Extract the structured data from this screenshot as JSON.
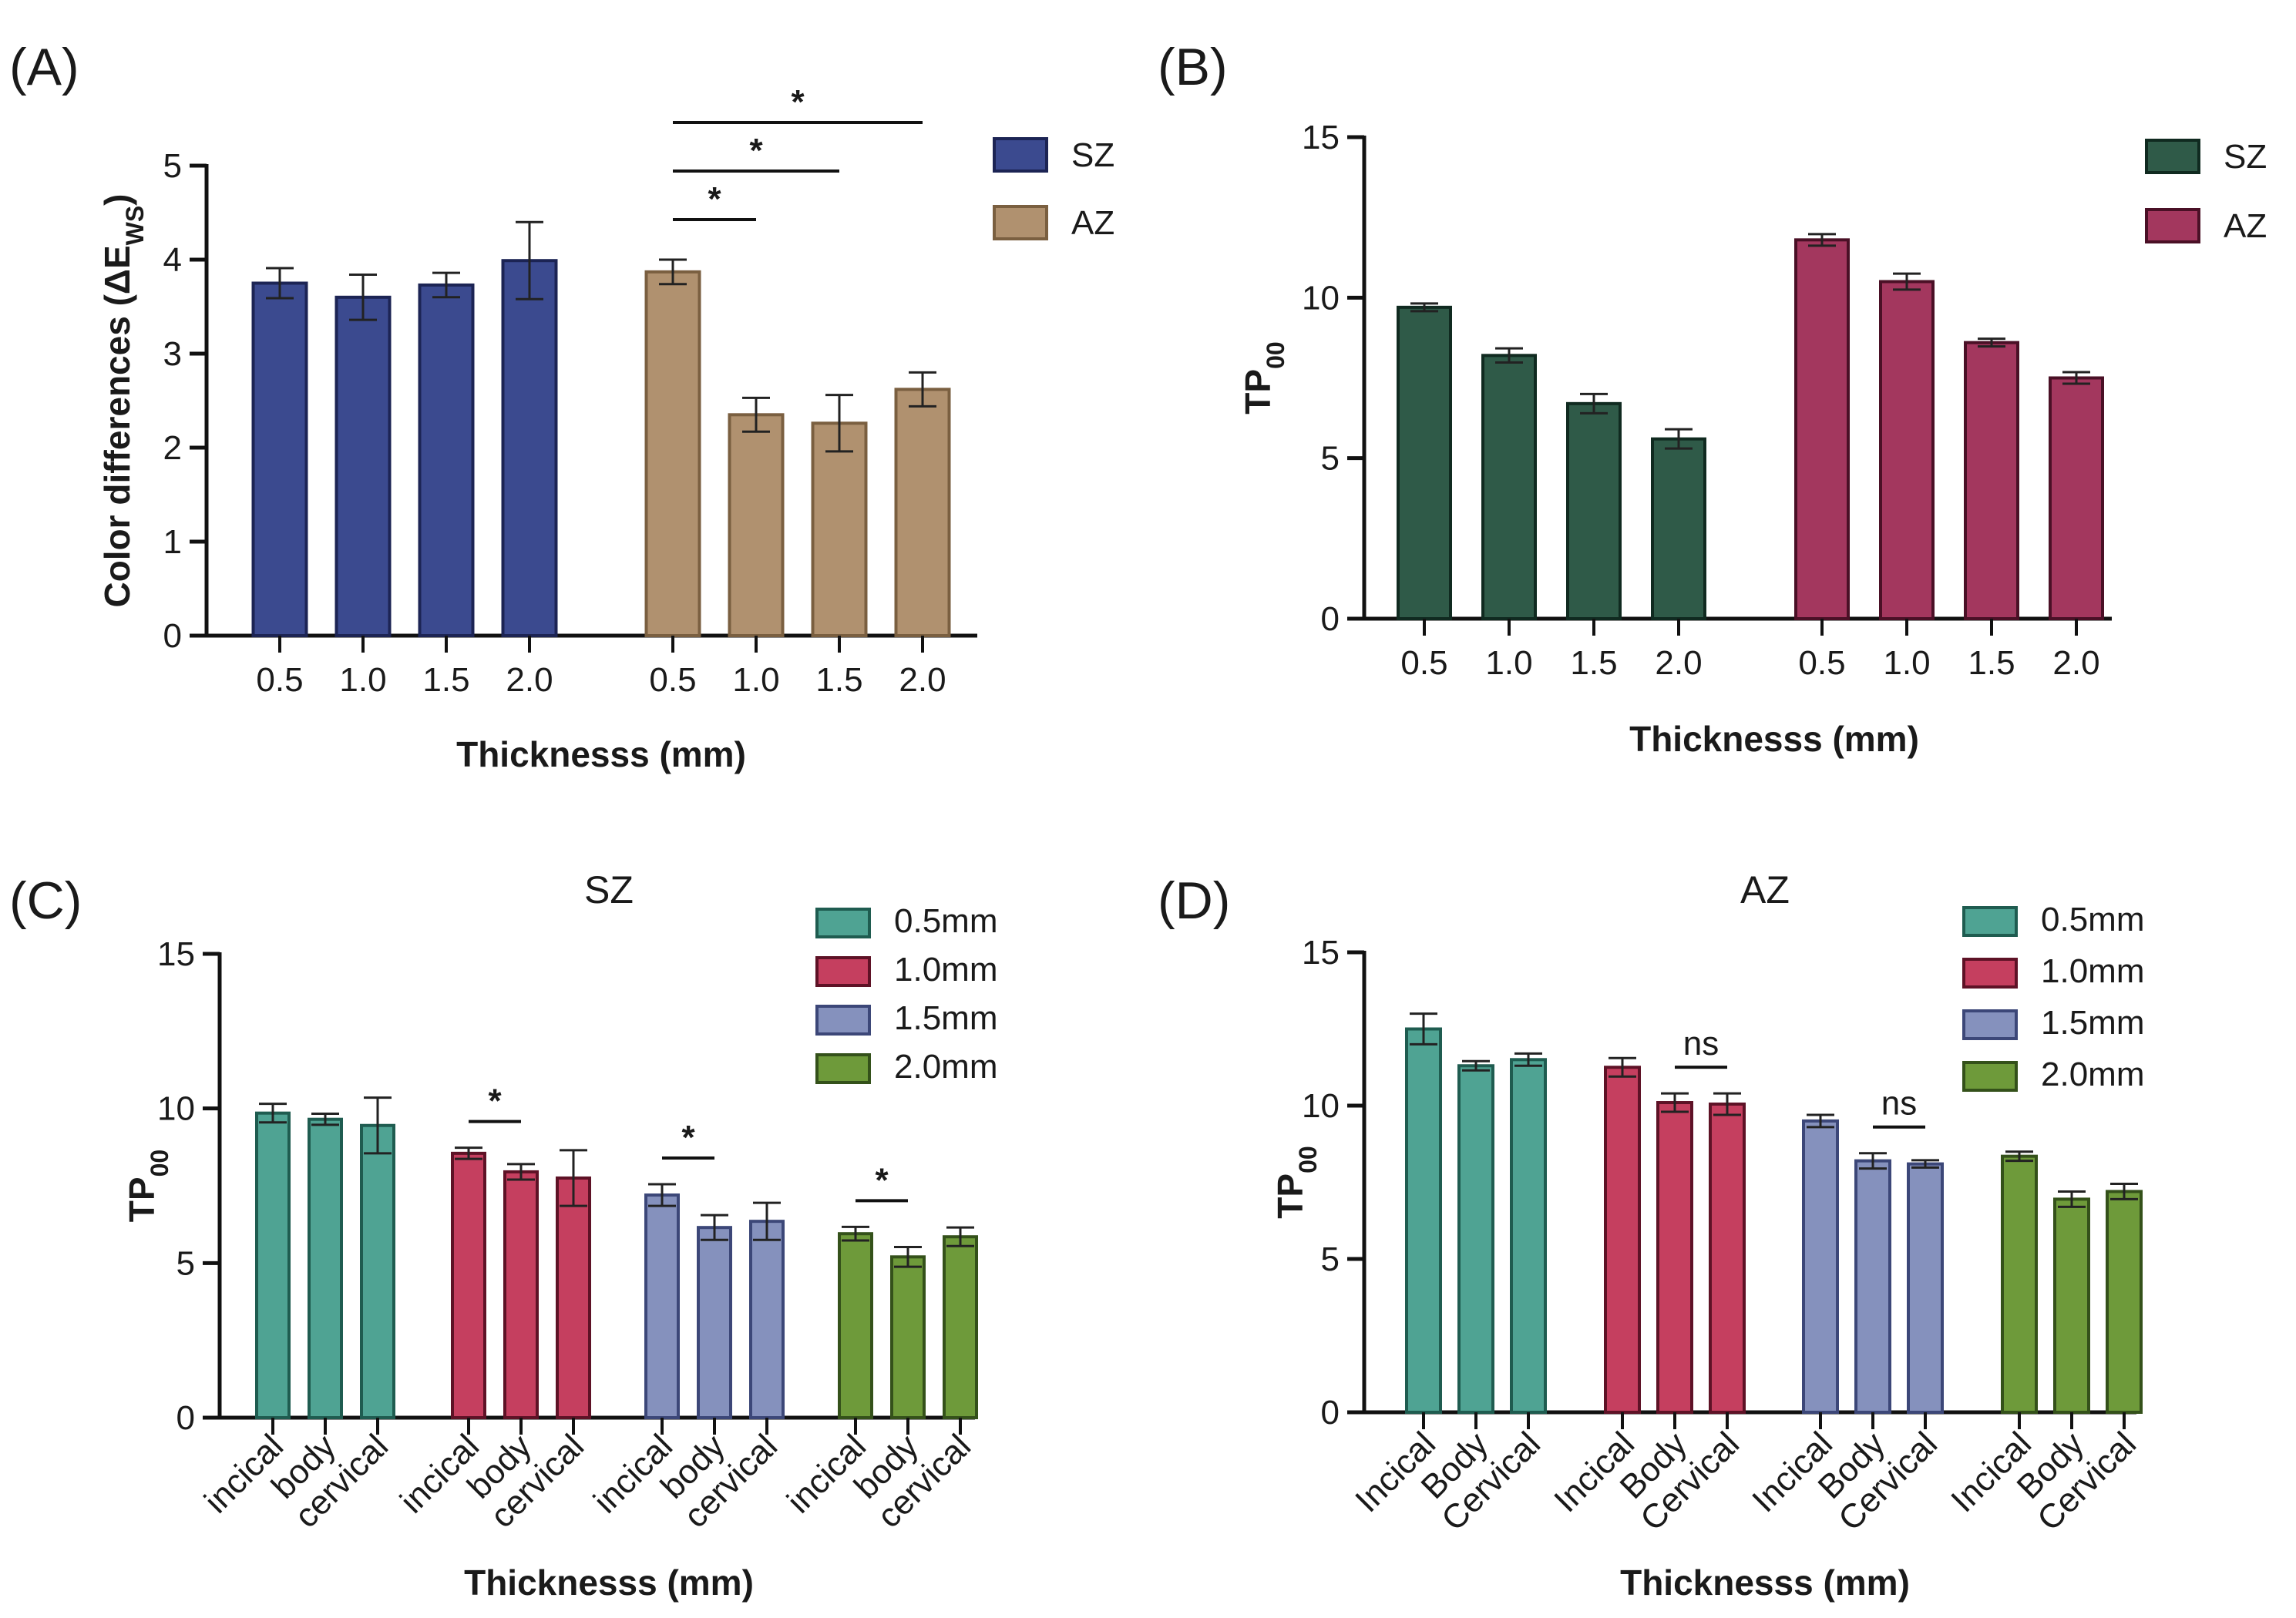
{
  "chart_data": [
    {
      "id": "A",
      "panel_label": "(A)",
      "type": "bar",
      "title": "",
      "xlabel": "Thicknesss (mm)",
      "ylabel_main": "Color differences (ΔE",
      "ylabel_sub": "WS",
      "ylabel_close": ")",
      "ylim": [
        0,
        5
      ],
      "yticks": [
        "0",
        "1",
        "2",
        "3",
        "4",
        "5"
      ],
      "legend": [
        {
          "name": "SZ",
          "fill": "#3b4a8f",
          "stroke": "#1c2454"
        },
        {
          "name": "AZ",
          "fill": "#b0916f",
          "stroke": "#7a5f40"
        }
      ],
      "groups": [
        {
          "series": "SZ",
          "categories": [
            "0.5",
            "1.0",
            "1.5",
            "2.0"
          ],
          "values": [
            3.75,
            3.6,
            3.73,
            3.99
          ],
          "errors": [
            0.16,
            0.24,
            0.13,
            0.41
          ]
        },
        {
          "series": "AZ",
          "categories": [
            "0.5",
            "1.0",
            "1.5",
            "2.0"
          ],
          "values": [
            3.87,
            2.35,
            2.26,
            2.62
          ],
          "errors": [
            0.13,
            0.18,
            0.3,
            0.18
          ]
        }
      ],
      "significance": [
        {
          "label": "*",
          "group": 1,
          "from": 0,
          "to": 1
        },
        {
          "label": "*",
          "group": 1,
          "from": 0,
          "to": 2
        },
        {
          "label": "*",
          "group": 1,
          "from": 0,
          "to": 3
        }
      ]
    },
    {
      "id": "B",
      "panel_label": "(B)",
      "type": "bar",
      "title": "",
      "xlabel": "Thicknesss (mm)",
      "ylabel_main": "TP",
      "ylabel_sub": "00",
      "ylabel_close": "",
      "ylim": [
        0,
        15
      ],
      "yticks": [
        "0",
        "5",
        "10",
        "15"
      ],
      "legend": [
        {
          "name": "SZ",
          "fill": "#2f5a48",
          "stroke": "#102a20"
        },
        {
          "name": "AZ",
          "fill": "#a3375e",
          "stroke": "#4a1026"
        }
      ],
      "groups": [
        {
          "series": "SZ",
          "categories": [
            "0.5",
            "1.0",
            "1.5",
            "2.0"
          ],
          "values": [
            9.7,
            8.2,
            6.7,
            5.6
          ],
          "errors": [
            0.12,
            0.22,
            0.3,
            0.3
          ]
        },
        {
          "series": "AZ",
          "categories": [
            "0.5",
            "1.0",
            "1.5",
            "2.0"
          ],
          "values": [
            11.8,
            10.5,
            8.6,
            7.5
          ],
          "errors": [
            0.18,
            0.25,
            0.12,
            0.18
          ]
        }
      ],
      "significance": []
    },
    {
      "id": "C",
      "panel_label": "(C)",
      "type": "bar",
      "title": "SZ",
      "xlabel": "Thicknesss (mm)",
      "ylabel_main": "TP",
      "ylabel_sub": "00",
      "ylabel_close": "",
      "ylim": [
        0,
        15
      ],
      "yticks": [
        "0",
        "5",
        "10",
        "15"
      ],
      "legend": [
        {
          "name": "0.5mm",
          "fill": "#4fa393",
          "stroke": "#1f5c50"
        },
        {
          "name": "1.0mm",
          "fill": "#c53f5f",
          "stroke": "#5e1226"
        },
        {
          "name": "1.5mm",
          "fill": "#8591bd",
          "stroke": "#3c4778"
        },
        {
          "name": "2.0mm",
          "fill": "#6e9a3a",
          "stroke": "#34511a"
        }
      ],
      "groups": [
        {
          "series": "0.5mm",
          "categories": [
            "incical",
            "body",
            "cervical"
          ],
          "values": [
            9.85,
            9.65,
            9.45
          ],
          "errors": [
            0.3,
            0.18,
            0.9
          ]
        },
        {
          "series": "1.0mm",
          "categories": [
            "incical",
            "body",
            "cervical"
          ],
          "values": [
            8.55,
            7.95,
            7.75
          ],
          "errors": [
            0.18,
            0.25,
            0.9
          ]
        },
        {
          "series": "1.5mm",
          "categories": [
            "incical",
            "body",
            "cervical"
          ],
          "values": [
            7.2,
            6.15,
            6.35
          ],
          "errors": [
            0.35,
            0.4,
            0.6
          ]
        },
        {
          "series": "2.0mm",
          "categories": [
            "incical",
            "body",
            "cervical"
          ],
          "values": [
            5.95,
            5.2,
            5.85
          ],
          "errors": [
            0.22,
            0.32,
            0.3
          ]
        }
      ],
      "significance": [
        {
          "label": "*",
          "group": 1,
          "from": 0,
          "to": 1
        },
        {
          "label": "*",
          "group": 2,
          "from": 0,
          "to": 1
        },
        {
          "label": "*",
          "group": 3,
          "from": 0,
          "to": 1
        }
      ]
    },
    {
      "id": "D",
      "panel_label": "(D)",
      "type": "bar",
      "title": "AZ",
      "xlabel": "Thicknesss (mm)",
      "ylabel_main": "TP",
      "ylabel_sub": "00",
      "ylabel_close": "",
      "ylim": [
        0,
        15
      ],
      "yticks": [
        "0",
        "5",
        "10",
        "15"
      ],
      "legend": [
        {
          "name": "0.5mm",
          "fill": "#4fa393",
          "stroke": "#1f5c50"
        },
        {
          "name": "1.0mm",
          "fill": "#c53f5f",
          "stroke": "#5e1226"
        },
        {
          "name": "1.5mm",
          "fill": "#8591bd",
          "stroke": "#3c4778"
        },
        {
          "name": "2.0mm",
          "fill": "#6e9a3a",
          "stroke": "#34511a"
        }
      ],
      "groups": [
        {
          "series": "0.5mm",
          "categories": [
            "Incical",
            "Body",
            "Cervical"
          ],
          "values": [
            12.5,
            11.3,
            11.5
          ],
          "errors": [
            0.5,
            0.15,
            0.2
          ]
        },
        {
          "series": "1.0mm",
          "categories": [
            "Incical",
            "Body",
            "Cervical"
          ],
          "values": [
            11.25,
            10.1,
            10.05
          ],
          "errors": [
            0.3,
            0.3,
            0.35
          ]
        },
        {
          "series": "1.5mm",
          "categories": [
            "Incical",
            "Body",
            "Cervical"
          ],
          "values": [
            9.5,
            8.2,
            8.1
          ],
          "errors": [
            0.2,
            0.25,
            0.12
          ]
        },
        {
          "series": "2.0mm",
          "categories": [
            "Incical",
            "Body",
            "Cervical"
          ],
          "values": [
            8.35,
            6.95,
            7.2
          ],
          "errors": [
            0.15,
            0.25,
            0.25
          ]
        }
      ],
      "significance": [
        {
          "label": "ns",
          "group": 1,
          "from": 1,
          "to": 2
        },
        {
          "label": "ns",
          "group": 2,
          "from": 1,
          "to": 2
        }
      ]
    }
  ]
}
